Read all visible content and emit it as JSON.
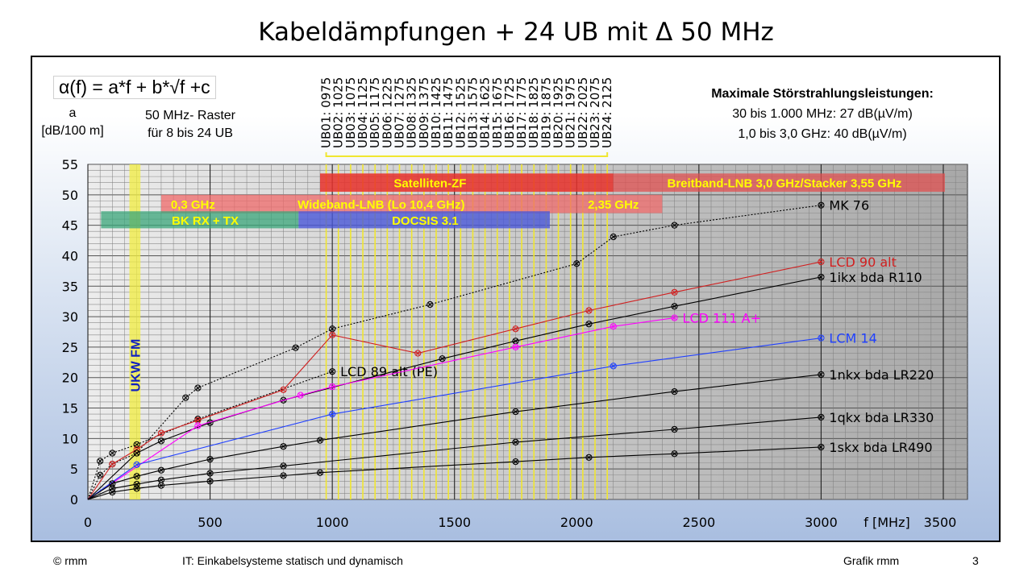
{
  "slide": {
    "title": "Kabeldämpfungen + 24 UB mit Δ 50 MHz",
    "formula": "α(f) = a*f + b*√f +c",
    "ylabel_line1": "a",
    "ylabel_line2": "[dB/100 m]",
    "raster_line1": "50 MHz- Raster",
    "raster_line2": "für 8 bis 24 UB",
    "limits_title": "Maximale Störstrahlungsleistungen:",
    "limits_line1": "30 bis 1.000 MHz: 27 dB(µV/m)",
    "limits_line2": "1,0 bis 3,0 GHz: 40 dB(µV/m)",
    "footer_left": "© rmm",
    "footer_center": "IT:  Einkabelsysteme statisch und dynamisch",
    "footer_right": "Grafik rmm",
    "page_number": "3"
  },
  "colors": {
    "black": "#000000",
    "red": "#d02020",
    "magenta": "#ff00ff",
    "blue": "#2040ff",
    "ub_line": "#f0e630",
    "band_text": "#ffff00"
  },
  "chart_data": {
    "type": "line",
    "xlabel": "f [MHz]",
    "ylabel": "a [dB/100 m]",
    "xlim": [
      0,
      3500
    ],
    "ylim": [
      0,
      55
    ],
    "x_ticks": [
      0,
      500,
      1000,
      1500,
      2000,
      2500,
      3000,
      3500
    ],
    "y_ticks": [
      0,
      5,
      10,
      15,
      20,
      25,
      30,
      35,
      40,
      45,
      50,
      55
    ],
    "grid": true,
    "ub_channels": [
      {
        "label": "UB01: 0975",
        "f": 975
      },
      {
        "label": "UB02: 1025",
        "f": 1025
      },
      {
        "label": "UB03: 1075",
        "f": 1075
      },
      {
        "label": "UB04: 1125",
        "f": 1125
      },
      {
        "label": "UB05: 1175",
        "f": 1175
      },
      {
        "label": "UB06: 1225",
        "f": 1225
      },
      {
        "label": "UB07: 1275",
        "f": 1275
      },
      {
        "label": "UB08: 1325",
        "f": 1325
      },
      {
        "label": "UB09: 1375",
        "f": 1375
      },
      {
        "label": "UB10: 1425",
        "f": 1425
      },
      {
        "label": "UB11: 1475",
        "f": 1475
      },
      {
        "label": "UB12: 1525",
        "f": 1525
      },
      {
        "label": "UB13: 1575",
        "f": 1575
      },
      {
        "label": "UB14: 1625",
        "f": 1625
      },
      {
        "label": "UB15: 1675",
        "f": 1675
      },
      {
        "label": "UB16: 1725",
        "f": 1725
      },
      {
        "label": "UB17: 1775",
        "f": 1775
      },
      {
        "label": "UB18: 1825",
        "f": 1825
      },
      {
        "label": "UB19: 1875",
        "f": 1875
      },
      {
        "label": "UB20: 1925",
        "f": 1925
      },
      {
        "label": "UB21: 1975",
        "f": 1975
      },
      {
        "label": "UB22: 2025",
        "f": 2025
      },
      {
        "label": "UB23: 2075",
        "f": 2075
      },
      {
        "label": "UB24: 2125",
        "f": 2125
      }
    ],
    "bands": [
      {
        "label": "Satelliten-ZF",
        "from": 950,
        "to": 2150,
        "y_from": 50.5,
        "y_to": 53.5,
        "color": "#e8302a",
        "opacity": 0.85,
        "text_x": 1400
      },
      {
        "label": "Breitband-LNB  3,0 GHz/Stacker  3,55 GHz",
        "from": 2150,
        "to": 3550,
        "y_from": 50.5,
        "y_to": 53.5,
        "color": "#e05050",
        "opacity": 0.75,
        "text_x": 2850
      },
      {
        "label": "0,3 GHz",
        "from": 300,
        "to": 2350,
        "y_from": 47,
        "y_to": 50,
        "color": "#ef6a6a",
        "opacity": 0.75,
        "text_x": 430
      },
      {
        "label": "Wideband-LNB  (Lo 10,4 GHz)",
        "from": 300,
        "to": 2350,
        "y_from": 47,
        "y_to": 50,
        "color": "none",
        "opacity": 0,
        "text_x": 1200
      },
      {
        "label": "2,35 GHz",
        "from": 300,
        "to": 2350,
        "y_from": 47,
        "y_to": 50,
        "color": "none",
        "opacity": 0,
        "text_x": 2150
      },
      {
        "label": "BK RX + TX",
        "from": 54,
        "to": 862,
        "y_from": 44.5,
        "y_to": 47.3,
        "color": "#3aa67a",
        "opacity": 0.75,
        "text_x": 480
      },
      {
        "label": "DOCSIS 3.1",
        "from": 862,
        "to": 1890,
        "y_from": 44.5,
        "y_to": 47.3,
        "color": "#4a58d8",
        "opacity": 0.8,
        "text_x": 1380
      }
    ],
    "fm_band": {
      "label": "UKW FM",
      "from": 170,
      "to": 215
    },
    "series": [
      {
        "name": "LCD 89 alt (PE)",
        "color": "#000000",
        "dash": "2,2",
        "x": [
          50,
          100,
          200,
          450,
          1000
        ],
        "y": [
          6.3,
          7.6,
          9,
          13.2,
          21
        ]
      },
      {
        "name": "MK 76",
        "color": "#000000",
        "dash": "2,2",
        "x": [
          50,
          100,
          200,
          400,
          450,
          850,
          1000,
          1400,
          2000,
          2150,
          2400,
          3000
        ],
        "y": [
          4,
          5.8,
          7.6,
          16.7,
          18.3,
          24.9,
          28,
          32,
          38.7,
          43.1,
          45,
          48.3
        ]
      },
      {
        "name": "LCD 90 alt",
        "color": "#d02020",
        "dash": "",
        "x": [
          100,
          200,
          300,
          450,
          800,
          1000,
          1350,
          1750,
          2050,
          2400,
          3000
        ],
        "y": [
          5.8,
          8.2,
          10.9,
          13,
          18,
          27,
          24,
          28,
          31,
          34,
          39
        ]
      },
      {
        "name": "1ikx bda R110",
        "color": "#000000",
        "dash": "",
        "x": [
          200,
          300,
          500,
          800,
          1450,
          1750,
          2050,
          2400,
          3000
        ],
        "y": [
          7.6,
          9.6,
          12.6,
          16.3,
          23.1,
          26,
          28.8,
          31.7,
          36.5
        ]
      },
      {
        "name": "LCD 111 A+",
        "color": "#ff00ff",
        "dash": "",
        "x": [
          450,
          870,
          1000,
          1750,
          2150,
          2400
        ],
        "y": [
          12.1,
          17.1,
          18.5,
          25,
          28.4,
          29.8
        ]
      },
      {
        "name": "LCM 14",
        "color": "#2040ff",
        "dash": "",
        "x": [
          200,
          1000,
          2150,
          3000
        ],
        "y": [
          5.7,
          14,
          21.9,
          26.5
        ]
      },
      {
        "name": "1nkx bda LR220",
        "color": "#000000",
        "dash": "",
        "x": [
          100,
          200,
          300,
          500,
          800,
          950,
          1750,
          2400,
          3000
        ],
        "y": [
          2.6,
          3.8,
          4.8,
          6.6,
          8.7,
          9.7,
          14.4,
          17.7,
          20.5
        ]
      },
      {
        "name": "1qkx bda LR330",
        "color": "#000000",
        "dash": "",
        "x": [
          100,
          200,
          300,
          500,
          800,
          1750,
          2400,
          3000
        ],
        "y": [
          1.8,
          2.5,
          3.2,
          4.3,
          5.5,
          9.4,
          11.5,
          13.5
        ]
      },
      {
        "name": "1skx bda LR490",
        "color": "#000000",
        "dash": "",
        "x": [
          100,
          200,
          300,
          500,
          800,
          950,
          1750,
          2050,
          2400,
          3000
        ],
        "y": [
          1.2,
          1.8,
          2.3,
          3,
          3.9,
          4.4,
          6.2,
          6.9,
          7.5,
          8.6
        ]
      }
    ]
  }
}
